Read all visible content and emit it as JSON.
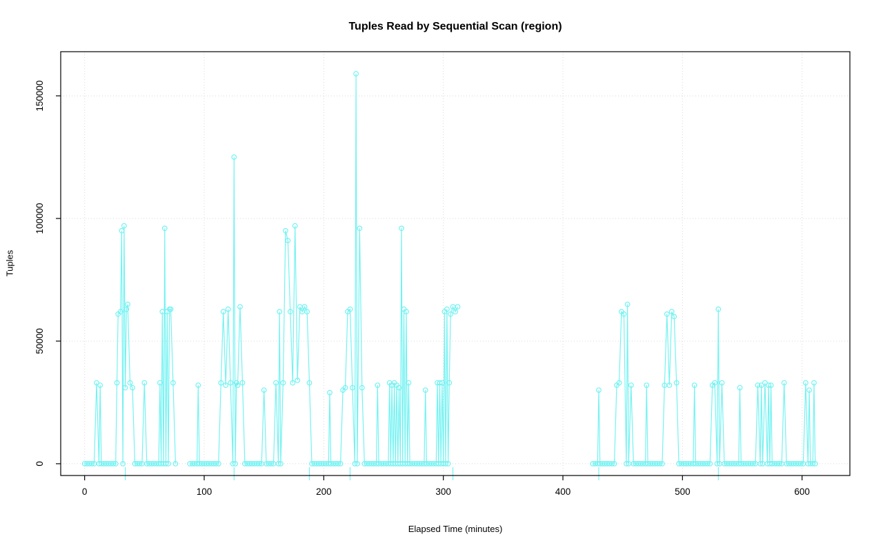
{
  "page": {
    "background": "#ffffff"
  },
  "chart_data": {
    "type": "line",
    "title": "Tuples Read by Sequential Scan (region)",
    "xlabel": "Elapsed Time (minutes)",
    "ylabel": "Tuples",
    "xlim": [
      -20,
      640
    ],
    "ylim": [
      -4800,
      168000
    ],
    "x_ticks": [
      {
        "v": 0,
        "label": "0"
      },
      {
        "v": 100,
        "label": "100"
      },
      {
        "v": 200,
        "label": "200"
      },
      {
        "v": 300,
        "label": "300"
      },
      {
        "v": 400,
        "label": "400"
      },
      {
        "v": 500,
        "label": "500"
      },
      {
        "v": 600,
        "label": "600"
      }
    ],
    "y_ticks": [
      {
        "v": 0,
        "label": "0"
      },
      {
        "v": 50000,
        "label": "50000"
      },
      {
        "v": 100000,
        "label": "100000"
      },
      {
        "v": 150000,
        "label": "150000"
      }
    ],
    "grid": "dotted",
    "grid_color": "#d8d8d8",
    "series_color": "#74f2f2",
    "marker": "open-circle",
    "baseline_value": 0,
    "baseline_step": 2,
    "baseline_runs": [
      [
        0,
        76
      ],
      [
        88,
        313
      ],
      [
        425,
        612
      ]
    ],
    "spikes": [
      [
        10,
        33000
      ],
      [
        13,
        32000
      ],
      [
        27,
        33000
      ],
      [
        28,
        61000
      ],
      [
        30,
        62000
      ],
      [
        31,
        95000
      ],
      [
        33,
        97000
      ],
      [
        34,
        31000
      ],
      [
        35,
        63000
      ],
      [
        36,
        65000
      ],
      [
        38,
        33000
      ],
      [
        40,
        31000
      ],
      [
        50,
        33000
      ],
      [
        63,
        33000
      ],
      [
        65,
        62000
      ],
      [
        67,
        96000
      ],
      [
        69,
        62000
      ],
      [
        71,
        63000
      ],
      [
        72,
        63000
      ],
      [
        74,
        33000
      ],
      [
        95,
        32000
      ],
      [
        114,
        33000
      ],
      [
        116,
        62000
      ],
      [
        118,
        32000
      ],
      [
        120,
        63000
      ],
      [
        122,
        33000
      ],
      [
        125,
        125000
      ],
      [
        127,
        33000
      ],
      [
        128,
        32000
      ],
      [
        130,
        64000
      ],
      [
        132,
        33000
      ],
      [
        150,
        30000
      ],
      [
        160,
        33000
      ],
      [
        163,
        62000
      ],
      [
        166,
        33000
      ],
      [
        168,
        95000
      ],
      [
        170,
        91000
      ],
      [
        172,
        62000
      ],
      [
        174,
        33000
      ],
      [
        176,
        97000
      ],
      [
        178,
        34000
      ],
      [
        180,
        64000
      ],
      [
        182,
        62000
      ],
      [
        184,
        64000
      ],
      [
        186,
        62000
      ],
      [
        188,
        33000
      ],
      [
        205,
        29000
      ],
      [
        216,
        30000
      ],
      [
        218,
        31000
      ],
      [
        220,
        62000
      ],
      [
        222,
        63000
      ],
      [
        224,
        31000
      ],
      [
        227,
        159000
      ],
      [
        230,
        96000
      ],
      [
        232,
        31000
      ],
      [
        245,
        32000
      ],
      [
        255,
        33000
      ],
      [
        257,
        32000
      ],
      [
        259,
        33000
      ],
      [
        261,
        32000
      ],
      [
        263,
        31000
      ],
      [
        265,
        96000
      ],
      [
        267,
        63000
      ],
      [
        269,
        62000
      ],
      [
        271,
        33000
      ],
      [
        285,
        30000
      ],
      [
        295,
        33000
      ],
      [
        297,
        33000
      ],
      [
        299,
        33000
      ],
      [
        301,
        62000
      ],
      [
        303,
        63000
      ],
      [
        305,
        33000
      ],
      [
        306,
        61000
      ],
      [
        308,
        64000
      ],
      [
        310,
        62000
      ],
      [
        312,
        64000
      ],
      [
        430,
        30000
      ],
      [
        445,
        32000
      ],
      [
        447,
        33000
      ],
      [
        449,
        62000
      ],
      [
        451,
        61000
      ],
      [
        454,
        65000
      ],
      [
        457,
        32000
      ],
      [
        470,
        32000
      ],
      [
        485,
        32000
      ],
      [
        487,
        61000
      ],
      [
        489,
        32000
      ],
      [
        491,
        62000
      ],
      [
        493,
        60000
      ],
      [
        495,
        33000
      ],
      [
        510,
        32000
      ],
      [
        525,
        32000
      ],
      [
        527,
        33000
      ],
      [
        530,
        63000
      ],
      [
        533,
        33000
      ],
      [
        548,
        31000
      ],
      [
        563,
        32000
      ],
      [
        566,
        32000
      ],
      [
        569,
        33000
      ],
      [
        572,
        32000
      ],
      [
        574,
        32000
      ],
      [
        585,
        33000
      ],
      [
        603,
        33000
      ],
      [
        606,
        30000
      ],
      [
        610,
        33000
      ]
    ],
    "rug_x": [
      34,
      125,
      188,
      222,
      308,
      430,
      530
    ]
  }
}
